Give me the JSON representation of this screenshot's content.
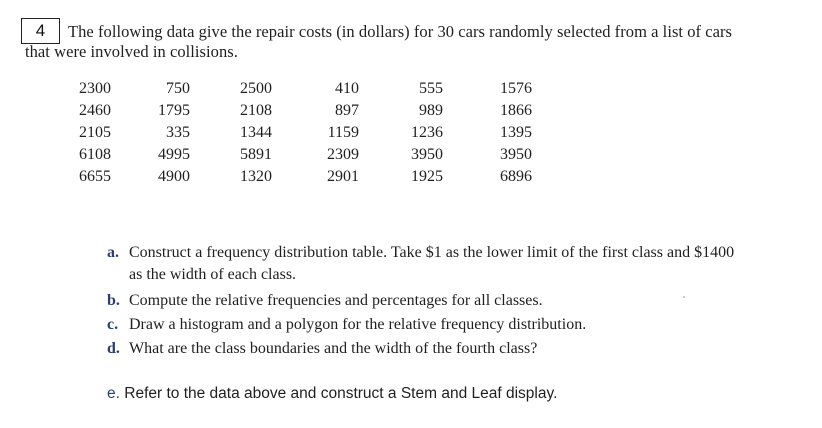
{
  "question_number": "4",
  "intro": {
    "line1": "The following data give the repair costs (in dollars) for 30 cars randomly selected from a list of cars",
    "line2": "that were involved in collisions."
  },
  "data_table": {
    "rows": [
      [
        "2300",
        "750",
        "2500",
        "410",
        "555",
        "1576"
      ],
      [
        "2460",
        "1795",
        "2108",
        "897",
        "989",
        "1866"
      ],
      [
        "2105",
        "335",
        "1344",
        "1159",
        "1236",
        "1395"
      ],
      [
        "6108",
        "4995",
        "5891",
        "2309",
        "3950",
        "3950"
      ],
      [
        "6655",
        "4900",
        "1320",
        "2901",
        "1925",
        "6896"
      ]
    ]
  },
  "tasks": [
    {
      "letter": "a.",
      "text": "Construct a frequency distribution table. Take $1 as the lower limit of the first class and $1400",
      "cont": "as the width of each class."
    },
    {
      "letter": "b.",
      "text": "Compute the relative frequencies and percentages for all classes.",
      "cont": ""
    },
    {
      "letter": "c.",
      "text": "Draw a histogram and a polygon for the relative frequency distribution.",
      "cont": ""
    },
    {
      "letter": "d.",
      "text": "What are the class boundaries and the width of the fourth class?",
      "cont": ""
    }
  ],
  "task_e": {
    "letter": "e.",
    "text": "Refer to the data above and construct a Stem and Leaf display."
  }
}
